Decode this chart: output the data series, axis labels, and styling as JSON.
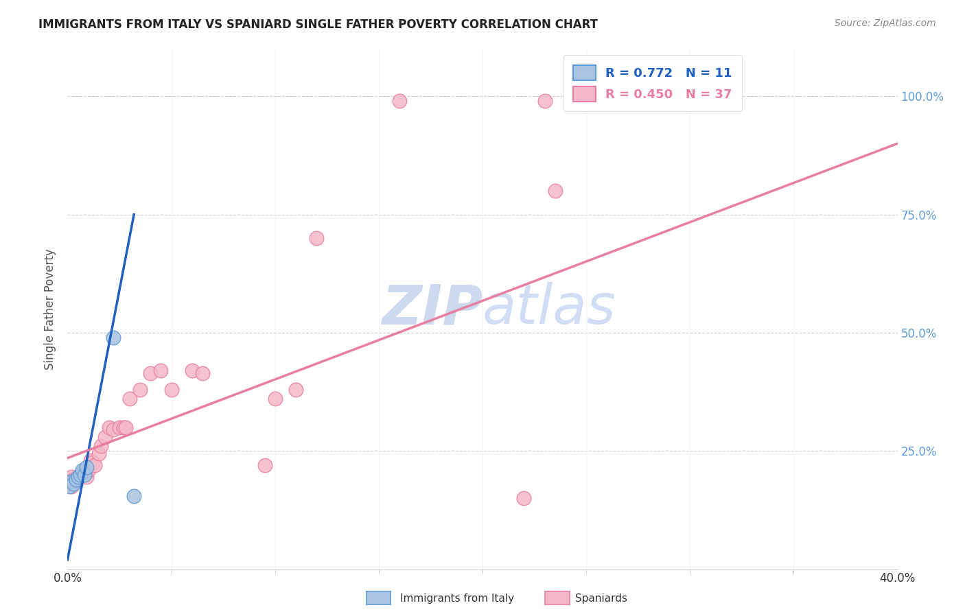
{
  "title": "IMMIGRANTS FROM ITALY VS SPANIARD SINGLE FATHER POVERTY CORRELATION CHART",
  "source": "Source: ZipAtlas.com",
  "ylabel": "Single Father Poverty",
  "ytick_labels": [
    "25.0%",
    "50.0%",
    "75.0%",
    "100.0%"
  ],
  "ytick_values": [
    0.25,
    0.5,
    0.75,
    1.0
  ],
  "legend1_text": "R = 0.772   N = 11",
  "legend2_text": "R = 0.450   N = 37",
  "italy_color": "#a8c4e0",
  "italy_edge_color": "#5b9bd5",
  "spaniard_color": "#f4b8c8",
  "spaniard_edge_color": "#e87fa0",
  "italy_line_color": "#2060c0",
  "spaniard_line_color": "#e87fa0",
  "watermark_color": "#ccd9ee",
  "xlim": [
    0.0,
    0.4
  ],
  "ylim": [
    0.0,
    1.1
  ],
  "background_color": "#ffffff",
  "italy_scatter_x": [
    0.001,
    0.002,
    0.003,
    0.004,
    0.005,
    0.006,
    0.007,
    0.008,
    0.009,
    0.022,
    0.032
  ],
  "italy_scatter_y": [
    0.175,
    0.185,
    0.18,
    0.19,
    0.195,
    0.2,
    0.21,
    0.2,
    0.215,
    0.49,
    0.155
  ],
  "spain_scatter_x": [
    0.001,
    0.002,
    0.002,
    0.003,
    0.004,
    0.005,
    0.006,
    0.007,
    0.008,
    0.009,
    0.01,
    0.011,
    0.012,
    0.013,
    0.015,
    0.016,
    0.018,
    0.02,
    0.022,
    0.025,
    0.027,
    0.028,
    0.03,
    0.035,
    0.04,
    0.045,
    0.05,
    0.06,
    0.065,
    0.095,
    0.1,
    0.11,
    0.12,
    0.16,
    0.22,
    0.23,
    0.235
  ],
  "spain_scatter_y": [
    0.185,
    0.195,
    0.175,
    0.19,
    0.185,
    0.195,
    0.2,
    0.205,
    0.205,
    0.195,
    0.21,
    0.23,
    0.225,
    0.22,
    0.245,
    0.26,
    0.28,
    0.3,
    0.295,
    0.3,
    0.3,
    0.3,
    0.36,
    0.38,
    0.415,
    0.42,
    0.38,
    0.42,
    0.415,
    0.22,
    0.36,
    0.38,
    0.7,
    0.99,
    0.15,
    0.99,
    0.8
  ],
  "italy_line_x0": 0.0,
  "italy_line_y0": 0.02,
  "italy_line_x1": 0.032,
  "italy_line_y1": 0.75,
  "spain_line_x0": 0.0,
  "spain_line_y0": 0.235,
  "spain_line_x1": 0.4,
  "spain_line_y1": 0.9
}
